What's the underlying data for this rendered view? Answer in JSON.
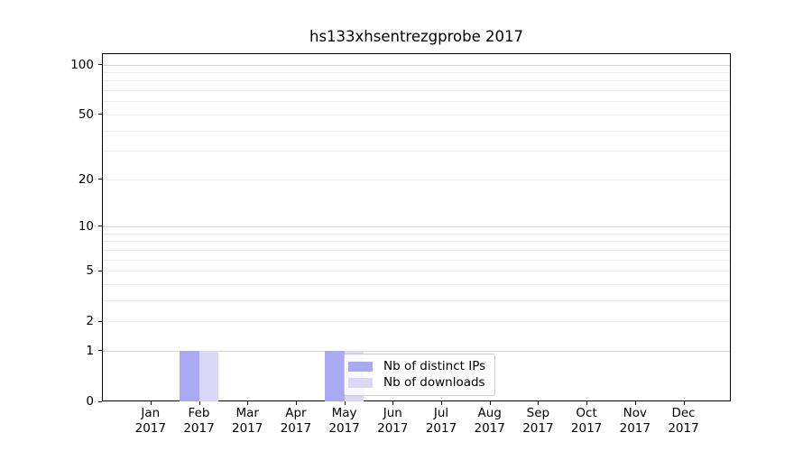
{
  "title": "hs133xhsentrezgprobe 2017",
  "chart_data": {
    "type": "bar",
    "title": "hs133xhsentrezgprobe 2017",
    "categories": [
      "Jan",
      "Feb",
      "Mar",
      "Apr",
      "May",
      "Jun",
      "Jul",
      "Aug",
      "Sep",
      "Oct",
      "Nov",
      "Dec"
    ],
    "x_tick_year": "2017",
    "series": [
      {
        "name": "Nb of distinct IPs",
        "color": "#aaaaf2",
        "values": [
          0,
          1,
          0,
          0,
          1,
          0,
          0,
          0,
          0,
          0,
          0,
          0
        ]
      },
      {
        "name": "Nb of downloads",
        "color": "#d9d9f7",
        "values": [
          0,
          1,
          0,
          0,
          1,
          0,
          0,
          0,
          0,
          0,
          0,
          0
        ]
      }
    ],
    "y_scale": "log10(1+y)",
    "ylim": [
      0,
      117
    ],
    "y_tick_values": [
      0,
      1,
      2,
      5,
      10,
      20,
      50,
      100
    ],
    "y_major_gridlines": [
      1,
      10,
      100
    ],
    "y_minor_gridlines": [
      2,
      3,
      4,
      5,
      6,
      7,
      8,
      9,
      20,
      30,
      40,
      50,
      60,
      70,
      80,
      90
    ],
    "grid": true,
    "legend_position": "inside-bottom-left-of-center"
  },
  "colors": {
    "distinct_ips_bar": "#aaaaf2",
    "downloads_bar": "#d9d9f7",
    "minor_gridline": "#ededed",
    "major_gridline": "#d4d4d4",
    "axis": "#000000",
    "legend_border": "#cccccc"
  }
}
